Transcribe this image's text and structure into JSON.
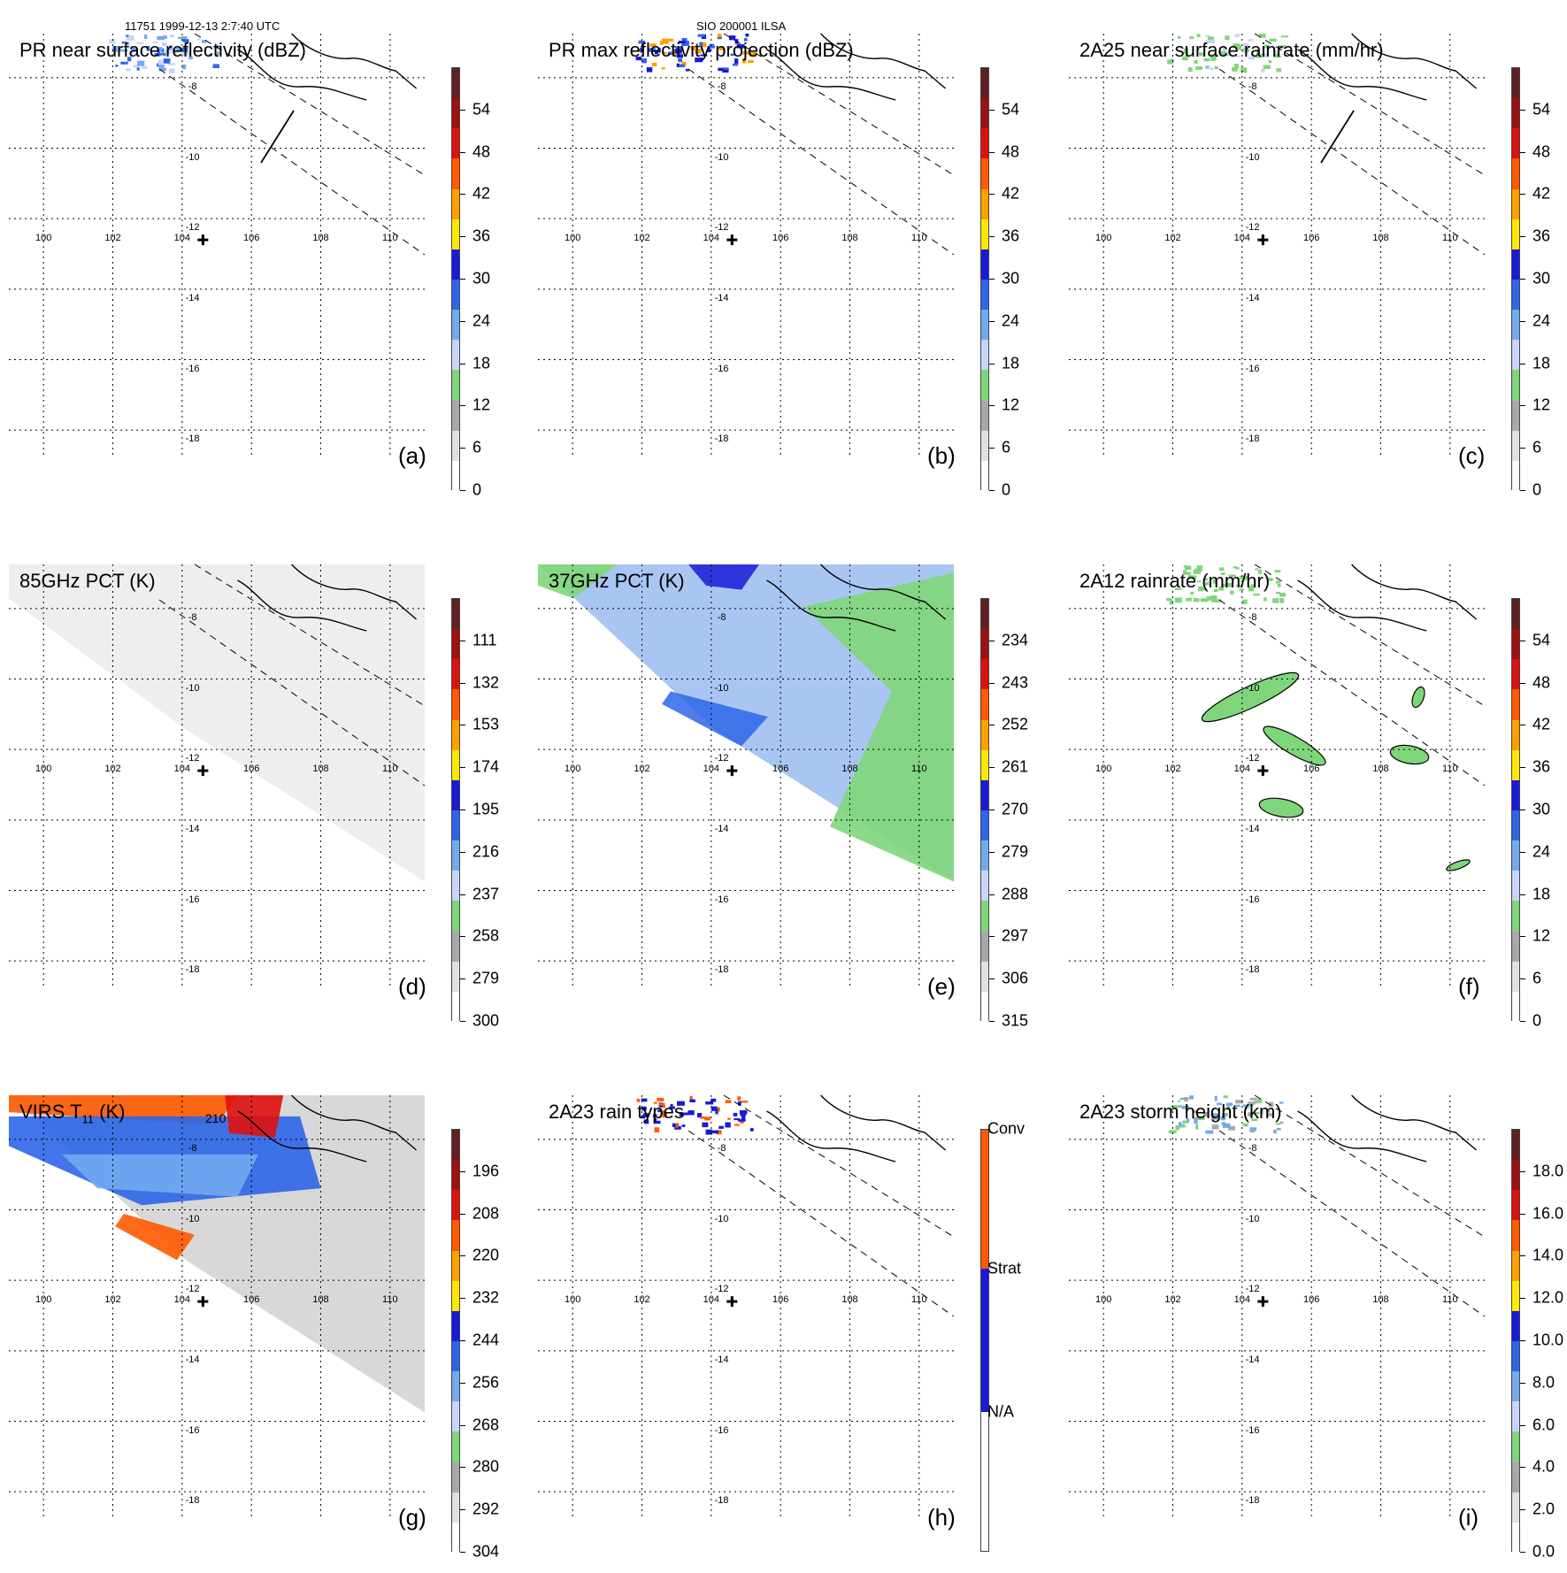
{
  "header": {
    "left": "11751 1999-12-13 2:7:40 UTC",
    "center": "SIO 200001 ILSA"
  },
  "map": {
    "lon_labels": [
      "100",
      "102",
      "104",
      "106",
      "108",
      "110"
    ],
    "lat_labels": [
      "-8",
      "-10",
      "-12",
      "-14",
      "-16",
      "-18"
    ]
  },
  "panels": [
    {
      "id": "a",
      "title": "PR near surface reflectivity (dBZ)",
      "label": "(a)",
      "colorbar": [
        "0",
        "6",
        "12",
        "18",
        "24",
        "30",
        "36",
        "42",
        "48",
        "54"
      ],
      "field": "pr_nsr",
      "swath": true,
      "crossline": true
    },
    {
      "id": "b",
      "title": "PR max reflectivity projection (dBZ)",
      "label": "(b)",
      "colorbar": [
        "0",
        "6",
        "12",
        "18",
        "24",
        "30",
        "36",
        "42",
        "48",
        "54"
      ],
      "field": "pr_max",
      "swath": true,
      "crossline": false
    },
    {
      "id": "c",
      "title": "2A25 near surface rainrate (mm/hr)",
      "label": "(c)",
      "colorbar": [
        "0",
        "6",
        "12",
        "18",
        "24",
        "30",
        "36",
        "42",
        "48",
        "54"
      ],
      "field": "rain",
      "swath": true,
      "crossline": true
    },
    {
      "id": "d",
      "title": "85GHz PCT (K)",
      "label": "(d)",
      "colorbar": [
        "300",
        "279",
        "258",
        "237",
        "216",
        "195",
        "174",
        "153",
        "132",
        "111"
      ],
      "field": "pct85",
      "swath": true,
      "crossline": false
    },
    {
      "id": "e",
      "title": "37GHz PCT (K)",
      "label": "(e)",
      "colorbar": [
        "315",
        "306",
        "297",
        "288",
        "279",
        "270",
        "261",
        "252",
        "243",
        "234"
      ],
      "field": "pct37",
      "swath": false,
      "crossline": false
    },
    {
      "id": "f",
      "title": "2A12 rainrate (mm/hr)",
      "label": "(f)",
      "colorbar": [
        "0",
        "6",
        "12",
        "18",
        "24",
        "30",
        "36",
        "42",
        "48",
        "54"
      ],
      "field": "tmi_rain",
      "swath": true,
      "crossline": false
    },
    {
      "id": "g",
      "title": "VIRS T11 (K)",
      "label": "(g)",
      "colorbar": [
        "304",
        "292",
        "280",
        "268",
        "256",
        "244",
        "232",
        "220",
        "208",
        "196"
      ],
      "field": "virs",
      "swath": false,
      "crossline": false
    },
    {
      "id": "h",
      "title": "2A23 rain types",
      "label": "(h)",
      "colorbar": [
        "N/A",
        "Strat",
        "Conv"
      ],
      "field": "raintype",
      "swath": true,
      "crossline": false
    },
    {
      "id": "i",
      "title": "2A23 storm height (km)",
      "label": "(i)",
      "colorbar": [
        "0.0",
        "2.0",
        "4.0",
        "6.0",
        "8.0",
        "10.0",
        "12.0",
        "14.0",
        "16.0",
        "18.0"
      ],
      "field": "height",
      "swath": true,
      "crossline": false
    }
  ],
  "colors": {
    "scale": [
      "#ffffff",
      "#e0e0e0",
      "#a8a8a8",
      "#7fd67a",
      "#c8d4f6",
      "#72aaf0",
      "#2e66e8",
      "#1a1ad8",
      "#ffe800",
      "#ffa000",
      "#ff5a00",
      "#e01010",
      "#a01010",
      "#602020"
    ],
    "conv": "#ff5a00",
    "strat": "#1a1ad8",
    "na": "#ffffff"
  },
  "annotations": {
    "virs_contour": "210"
  }
}
